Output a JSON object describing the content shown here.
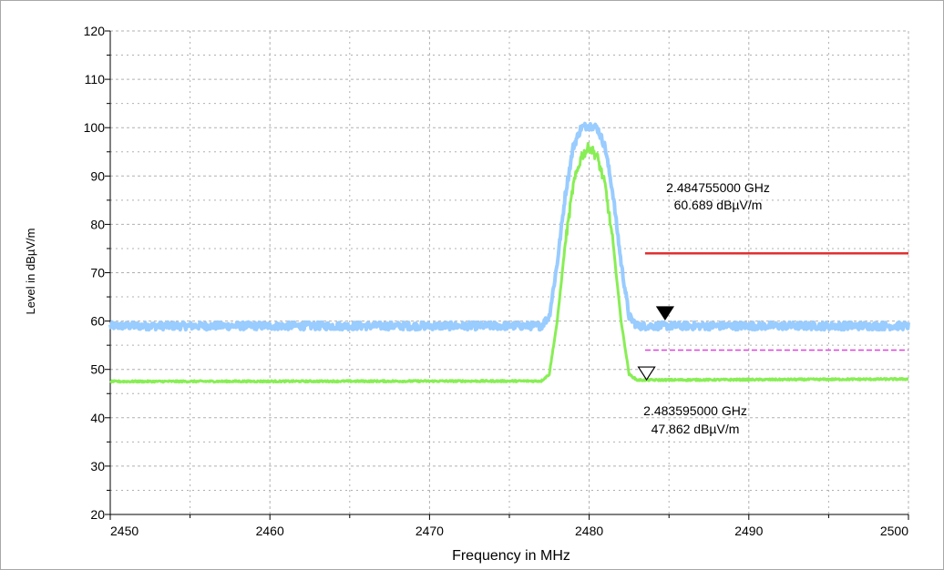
{
  "chart_data": {
    "type": "line",
    "xlabel": "Frequency in MHz",
    "ylabel": "Level in dBµV/m",
    "xlim": [
      2450,
      2500
    ],
    "ylim": [
      20,
      120
    ],
    "x_ticks": [
      "2450",
      "2460",
      "2470",
      "2480",
      "2490",
      "2500"
    ],
    "y_ticks": [
      "20",
      "30",
      "40",
      "50",
      "60",
      "70",
      "80",
      "90",
      "100",
      "110",
      "120"
    ],
    "grid": true,
    "series": [
      {
        "color": "#99ccff",
        "x": [
          2450,
          2477,
          2477.5,
          2478,
          2478.5,
          2479,
          2479.5,
          2480,
          2480.5,
          2481,
          2481.5,
          2482,
          2482.5,
          2483,
          2500
        ],
        "y": [
          59,
          59,
          61,
          72,
          86,
          96,
          100,
          100.5,
          100,
          96,
          86,
          72,
          61,
          59,
          59
        ]
      },
      {
        "color": "#88ee55",
        "x": [
          2450,
          2477,
          2477.5,
          2478,
          2478.5,
          2479,
          2479.5,
          2480,
          2480.5,
          2481,
          2481.5,
          2482,
          2482.5,
          2483,
          2500
        ],
        "y": [
          47.5,
          47.6,
          49,
          60,
          76,
          88,
          94,
          96,
          94,
          88,
          76,
          60,
          49,
          47.8,
          48
        ]
      }
    ],
    "limit_lines": [
      {
        "color": "#e03030",
        "style": "solid",
        "x": [
          2483.5,
          2500
        ],
        "y": 74
      },
      {
        "color": "#e040e0",
        "style": "dashed",
        "x": [
          2483.5,
          2500
        ],
        "y": 54
      }
    ],
    "markers": [
      {
        "type": "filled",
        "x": 2484.755,
        "y": 60.689,
        "label_freq": "2.484755000 GHz",
        "label_level": "60.689 dBµV/m"
      },
      {
        "type": "hollow",
        "x": 2483.595,
        "y": 47.862,
        "label_freq": "2.483595000 GHz",
        "label_level": "47.862 dBµV/m"
      }
    ]
  }
}
